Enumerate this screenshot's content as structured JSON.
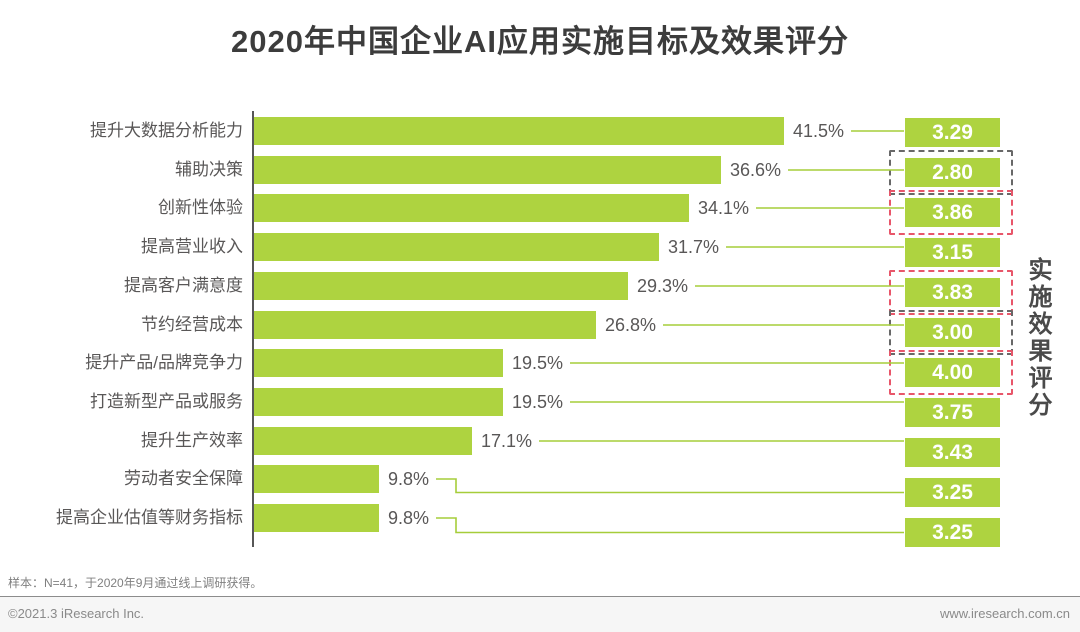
{
  "page": {
    "title": "2020年中国企业AI应用实施目标及效果评分",
    "right_axis_label": "实施效果评分",
    "footer": {
      "sample_note": "样本：N=41，于2020年9月通过线上调研获得。",
      "copyright": "©2021.3 iResearch Inc.",
      "website": "www.iresearch.com.cn"
    }
  },
  "colors": {
    "bar_green": "#aed340",
    "score_box_green": "#aed340",
    "connector_green": "#a6cd3a",
    "red_dash": "#e8566a",
    "gray_dash": "#686868"
  },
  "chart_data": {
    "type": "bar",
    "orientation": "horizontal",
    "title": "2020年中国企业AI应用实施目标及效果评分",
    "categories": [
      "提升大数据分析能力",
      "辅助决策",
      "创新性体验",
      "提高营业收入",
      "提高客户满意度",
      "节约经营成本",
      "提升产品/品牌竞争力",
      "打造新型产品或服务",
      "提升生产效率",
      "劳动者安全保障",
      "提高企业估值等财务指标"
    ],
    "series": [
      {
        "name": "实施目标占比(%)",
        "values": [
          41.5,
          36.6,
          34.1,
          31.7,
          29.3,
          26.8,
          19.5,
          19.5,
          17.1,
          9.8,
          9.8
        ]
      },
      {
        "name": "实施效果评分",
        "values": [
          3.29,
          2.8,
          3.86,
          3.15,
          3.83,
          3.0,
          4.0,
          3.75,
          3.43,
          3.25,
          3.25
        ]
      }
    ],
    "value_labels": [
      "41.5%",
      "36.6%",
      "34.1%",
      "31.7%",
      "29.3%",
      "26.8%",
      "19.5%",
      "19.5%",
      "17.1%",
      "9.8%",
      "9.8%"
    ],
    "score_labels": [
      "3.29",
      "2.80",
      "3.86",
      "3.15",
      "3.83",
      "3.00",
      "4.00",
      "3.75",
      "3.43",
      "3.25",
      "3.25"
    ],
    "score_highlights": [
      null,
      "gray",
      "red",
      null,
      "red",
      "gray",
      "red",
      null,
      null,
      null,
      null
    ],
    "xlim": [
      0,
      41.5
    ],
    "grid": false,
    "legend": false
  }
}
